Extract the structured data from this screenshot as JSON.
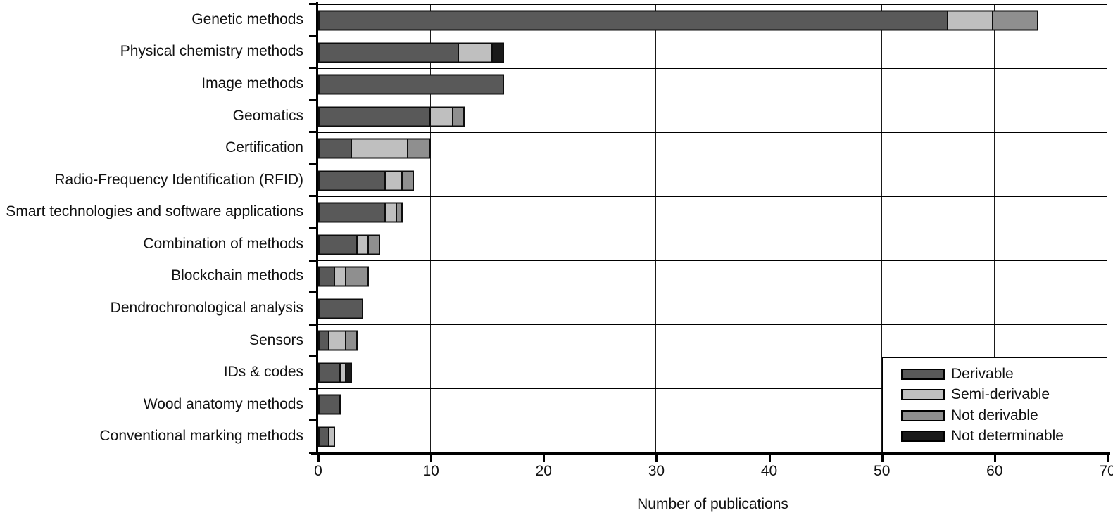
{
  "chart_data": {
    "type": "bar",
    "orientation": "horizontal",
    "stacked": true,
    "title": "",
    "xlabel": "Number of publications",
    "ylabel": "",
    "xlim": [
      0,
      70
    ],
    "xticks": [
      0,
      10,
      20,
      30,
      40,
      50,
      60,
      70
    ],
    "grid": "vertical gridlines every 10 units; horizontal separator line between each category row",
    "legend_position": "inside bottom-right, white box",
    "categories": [
      "Genetic methods",
      "Physical chemistry methods",
      "Image methods",
      "Geomatics",
      "Certification",
      "Radio-Frequency Identification (RFID)",
      "Smart technologies and software applications",
      "Combination of methods",
      "Blockchain methods",
      "Dendrochronological analysis",
      "Sensors",
      "IDs & codes",
      "Wood anatomy methods",
      "Conventional marking methods"
    ],
    "series": [
      {
        "name": "Derivable",
        "color": "#595959",
        "values": [
          56,
          12.5,
          16.5,
          10,
          3,
          6,
          6,
          3.5,
          1.5,
          4,
          1,
          2,
          2,
          1
        ]
      },
      {
        "name": "Semi-derivable",
        "color": "#bfbfbf",
        "values": [
          4,
          3,
          0,
          2,
          5,
          1.5,
          1,
          1,
          1,
          0,
          1.5,
          0.5,
          0,
          0.5
        ]
      },
      {
        "name": "Not derivable",
        "color": "#8f8f8f",
        "values": [
          4,
          0,
          0,
          1,
          2,
          1,
          0.5,
          1,
          2,
          0,
          1,
          0,
          0,
          0
        ]
      },
      {
        "name": "Not determinable",
        "color": "#1a1a1a",
        "values": [
          0,
          1,
          0,
          0,
          0,
          0,
          0,
          0,
          0,
          0,
          0,
          0.5,
          0,
          0
        ]
      }
    ]
  },
  "axes": {
    "x_title": "Number of publications",
    "x_tick_labels": [
      "0",
      "10",
      "20",
      "30",
      "40",
      "50",
      "60",
      "70"
    ]
  },
  "colors": {
    "axis": "#000000",
    "gridline": "#1a1a1a",
    "background": "#ffffff"
  }
}
